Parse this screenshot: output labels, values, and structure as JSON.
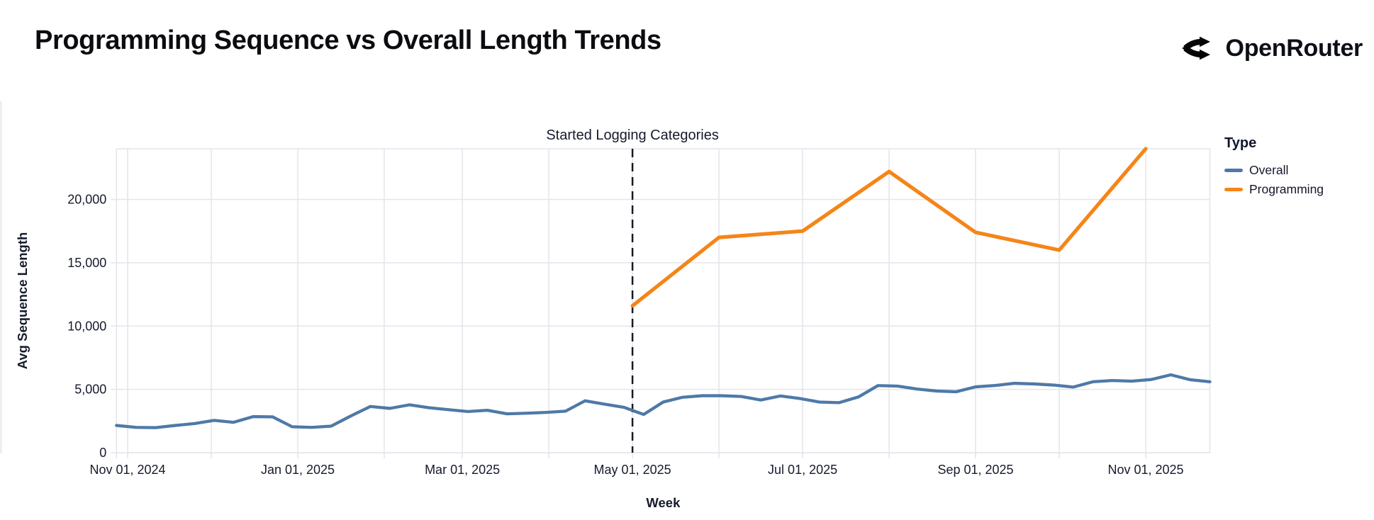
{
  "header": {
    "title": "Programming Sequence vs Overall Length Trends",
    "brand": "OpenRouter"
  },
  "chart_data": {
    "type": "line",
    "title": "Programming Sequence vs Overall Length Trends",
    "xlabel": "Week",
    "ylabel": "Avg Sequence Length",
    "ylim": [
      0,
      24000
    ],
    "grid": true,
    "legend_position": "right",
    "annotation": {
      "label": "Started Logging Categories",
      "date": "2025-05-01"
    },
    "colors": {
      "overall": "#4e79a8",
      "programming": "#f58518",
      "gridline": "#e5e5ed",
      "text": "#161b2c",
      "rule": "#181a22"
    },
    "y_ticks": [
      {
        "value": 0,
        "label": "0"
      },
      {
        "value": 5000,
        "label": "5,000"
      },
      {
        "value": 10000,
        "label": "10,000"
      },
      {
        "value": 15000,
        "label": "15,000"
      },
      {
        "value": 20000,
        "label": "20,000"
      }
    ],
    "x_gridline_dates": [
      "2024-11-01",
      "2024-12-01",
      "2025-01-01",
      "2025-02-01",
      "2025-03-01",
      "2025-04-01",
      "2025-05-01",
      "2025-06-01",
      "2025-07-01",
      "2025-08-01",
      "2025-09-01",
      "2025-10-01",
      "2025-11-01"
    ],
    "x_ticks": [
      {
        "date": "2024-11-01",
        "label": "Nov 01, 2024"
      },
      {
        "date": "2025-01-01",
        "label": "Jan 01, 2025"
      },
      {
        "date": "2025-03-01",
        "label": "Mar 01, 2025"
      },
      {
        "date": "2025-05-01",
        "label": "May 01, 2025"
      },
      {
        "date": "2025-07-01",
        "label": "Jul 01, 2025"
      },
      {
        "date": "2025-09-01",
        "label": "Sep 01, 2025"
      },
      {
        "date": "2025-11-01",
        "label": "Nov 01, 2025"
      }
    ],
    "legend": {
      "title": "Type",
      "entries": [
        {
          "name": "Overall",
          "color": "#4e79a8"
        },
        {
          "name": "Programming",
          "color": "#f58518"
        }
      ]
    },
    "series": [
      {
        "name": "Overall",
        "color": "#4e79a8",
        "stroke_width": 4.3,
        "dates": [
          "2024-10-28",
          "2024-11-04",
          "2024-11-11",
          "2024-11-18",
          "2024-11-25",
          "2024-12-02",
          "2024-12-09",
          "2024-12-16",
          "2024-12-23",
          "2024-12-30",
          "2025-01-06",
          "2025-01-13",
          "2025-01-20",
          "2025-01-27",
          "2025-02-03",
          "2025-02-10",
          "2025-02-17",
          "2025-02-24",
          "2025-03-03",
          "2025-03-10",
          "2025-03-17",
          "2025-03-24",
          "2025-03-31",
          "2025-04-07",
          "2025-04-14",
          "2025-04-21",
          "2025-04-28",
          "2025-05-05",
          "2025-05-12",
          "2025-05-19",
          "2025-05-26",
          "2025-06-02",
          "2025-06-09",
          "2025-06-16",
          "2025-06-23",
          "2025-06-30",
          "2025-07-07",
          "2025-07-14",
          "2025-07-21",
          "2025-07-28",
          "2025-08-04",
          "2025-08-11",
          "2025-08-18",
          "2025-08-25",
          "2025-09-01",
          "2025-09-08",
          "2025-09-15",
          "2025-09-22",
          "2025-09-29",
          "2025-10-06",
          "2025-10-13",
          "2025-10-20",
          "2025-10-27",
          "2025-11-03",
          "2025-11-10",
          "2025-11-17",
          "2025-11-24"
        ],
        "values": [
          2150,
          2000,
          1980,
          2150,
          2300,
          2550,
          2400,
          2850,
          2830,
          2050,
          2000,
          2100,
          2900,
          3650,
          3500,
          3780,
          3550,
          3400,
          3250,
          3350,
          3070,
          3120,
          3180,
          3280,
          4100,
          3830,
          3580,
          3020,
          4000,
          4380,
          4500,
          4500,
          4440,
          4160,
          4480,
          4280,
          4000,
          3950,
          4400,
          5300,
          5260,
          5030,
          4870,
          4810,
          5200,
          5310,
          5480,
          5430,
          5340,
          5180,
          5600,
          5700,
          5650,
          5780,
          6150,
          5760,
          5600
        ]
      },
      {
        "name": "Programming",
        "color": "#f58518",
        "stroke_width": 5.2,
        "dates": [
          "2025-05-01",
          "2025-06-01",
          "2025-07-01",
          "2025-08-01",
          "2025-09-01",
          "2025-10-01",
          "2025-11-01"
        ],
        "values": [
          11600,
          17000,
          17500,
          22200,
          17400,
          16000,
          24000
        ]
      }
    ]
  }
}
